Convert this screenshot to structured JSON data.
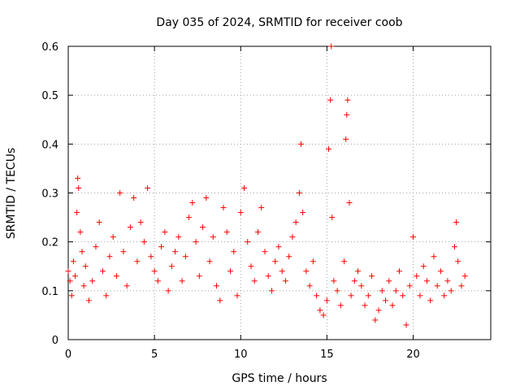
{
  "chart_data": {
    "type": "scatter",
    "title": "Day 035 of 2024, SRMTID for receiver coob",
    "xlabel": "GPS time / hours",
    "ylabel": "SRMTID / TECUs",
    "xlim": [
      0,
      24.5
    ],
    "ylim": [
      0,
      0.6
    ],
    "x_ticks": [
      0,
      5,
      10,
      15,
      20
    ],
    "x_tick_labels": [
      "0",
      "5",
      "10",
      "15",
      "20"
    ],
    "y_ticks": [
      0,
      0.1,
      0.2,
      0.3,
      0.4,
      0.5,
      0.6
    ],
    "y_tick_labels": [
      "0",
      "0.1",
      "0.2",
      "0.3",
      "0.4",
      "0.5",
      "0.6"
    ],
    "grid": true,
    "marker": "+",
    "marker_color": "#ff0000",
    "series": [
      {
        "name": "SRMTID",
        "points": [
          [
            0.0,
            0.14
          ],
          [
            0.1,
            0.12
          ],
          [
            0.2,
            0.09
          ],
          [
            0.3,
            0.16
          ],
          [
            0.4,
            0.13
          ],
          [
            0.5,
            0.26
          ],
          [
            0.55,
            0.33
          ],
          [
            0.6,
            0.31
          ],
          [
            0.7,
            0.22
          ],
          [
            0.8,
            0.18
          ],
          [
            0.9,
            0.11
          ],
          [
            1.0,
            0.15
          ],
          [
            1.2,
            0.08
          ],
          [
            1.4,
            0.12
          ],
          [
            1.6,
            0.19
          ],
          [
            1.8,
            0.24
          ],
          [
            2.0,
            0.14
          ],
          [
            2.2,
            0.09
          ],
          [
            2.4,
            0.17
          ],
          [
            2.6,
            0.21
          ],
          [
            2.8,
            0.13
          ],
          [
            3.0,
            0.3
          ],
          [
            3.2,
            0.18
          ],
          [
            3.4,
            0.11
          ],
          [
            3.6,
            0.23
          ],
          [
            3.8,
            0.29
          ],
          [
            4.0,
            0.16
          ],
          [
            4.2,
            0.24
          ],
          [
            4.4,
            0.2
          ],
          [
            4.6,
            0.31
          ],
          [
            4.8,
            0.17
          ],
          [
            5.0,
            0.14
          ],
          [
            5.2,
            0.12
          ],
          [
            5.4,
            0.19
          ],
          [
            5.6,
            0.22
          ],
          [
            5.8,
            0.1
          ],
          [
            6.0,
            0.15
          ],
          [
            6.2,
            0.18
          ],
          [
            6.4,
            0.21
          ],
          [
            6.6,
            0.12
          ],
          [
            6.8,
            0.17
          ],
          [
            7.0,
            0.25
          ],
          [
            7.2,
            0.28
          ],
          [
            7.4,
            0.2
          ],
          [
            7.6,
            0.13
          ],
          [
            7.8,
            0.23
          ],
          [
            8.0,
            0.29
          ],
          [
            8.2,
            0.16
          ],
          [
            8.4,
            0.21
          ],
          [
            8.6,
            0.11
          ],
          [
            8.8,
            0.08
          ],
          [
            9.0,
            0.27
          ],
          [
            9.2,
            0.22
          ],
          [
            9.4,
            0.14
          ],
          [
            9.6,
            0.18
          ],
          [
            9.8,
            0.09
          ],
          [
            10.0,
            0.26
          ],
          [
            10.2,
            0.31
          ],
          [
            10.4,
            0.2
          ],
          [
            10.6,
            0.15
          ],
          [
            10.8,
            0.12
          ],
          [
            11.0,
            0.22
          ],
          [
            11.2,
            0.27
          ],
          [
            11.4,
            0.18
          ],
          [
            11.6,
            0.13
          ],
          [
            11.8,
            0.1
          ],
          [
            12.0,
            0.16
          ],
          [
            12.2,
            0.19
          ],
          [
            12.4,
            0.14
          ],
          [
            12.6,
            0.12
          ],
          [
            12.8,
            0.17
          ],
          [
            13.0,
            0.21
          ],
          [
            13.2,
            0.24
          ],
          [
            13.4,
            0.3
          ],
          [
            13.5,
            0.4
          ],
          [
            13.6,
            0.26
          ],
          [
            13.8,
            0.14
          ],
          [
            14.0,
            0.11
          ],
          [
            14.2,
            0.16
          ],
          [
            14.4,
            0.09
          ],
          [
            14.6,
            0.06
          ],
          [
            14.8,
            0.05
          ],
          [
            15.0,
            0.08
          ],
          [
            15.1,
            0.39
          ],
          [
            15.2,
            0.49
          ],
          [
            15.25,
            0.6
          ],
          [
            15.3,
            0.25
          ],
          [
            15.4,
            0.12
          ],
          [
            15.6,
            0.1
          ],
          [
            15.8,
            0.07
          ],
          [
            16.0,
            0.16
          ],
          [
            16.1,
            0.41
          ],
          [
            16.15,
            0.46
          ],
          [
            16.2,
            0.49
          ],
          [
            16.3,
            0.28
          ],
          [
            16.4,
            0.09
          ],
          [
            16.6,
            0.12
          ],
          [
            16.8,
            0.14
          ],
          [
            17.0,
            0.11
          ],
          [
            17.2,
            0.07
          ],
          [
            17.4,
            0.09
          ],
          [
            17.6,
            0.13
          ],
          [
            17.8,
            0.04
          ],
          [
            18.0,
            0.06
          ],
          [
            18.2,
            0.1
          ],
          [
            18.4,
            0.08
          ],
          [
            18.6,
            0.12
          ],
          [
            18.8,
            0.07
          ],
          [
            19.0,
            0.1
          ],
          [
            19.2,
            0.14
          ],
          [
            19.4,
            0.09
          ],
          [
            19.6,
            0.03
          ],
          [
            19.8,
            0.11
          ],
          [
            20.0,
            0.21
          ],
          [
            20.2,
            0.13
          ],
          [
            20.4,
            0.09
          ],
          [
            20.6,
            0.15
          ],
          [
            20.8,
            0.12
          ],
          [
            21.0,
            0.08
          ],
          [
            21.2,
            0.17
          ],
          [
            21.4,
            0.11
          ],
          [
            21.6,
            0.14
          ],
          [
            21.8,
            0.09
          ],
          [
            22.0,
            0.12
          ],
          [
            22.2,
            0.1
          ],
          [
            22.4,
            0.19
          ],
          [
            22.5,
            0.24
          ],
          [
            22.6,
            0.16
          ],
          [
            22.8,
            0.11
          ],
          [
            23.0,
            0.13
          ]
        ]
      }
    ]
  }
}
